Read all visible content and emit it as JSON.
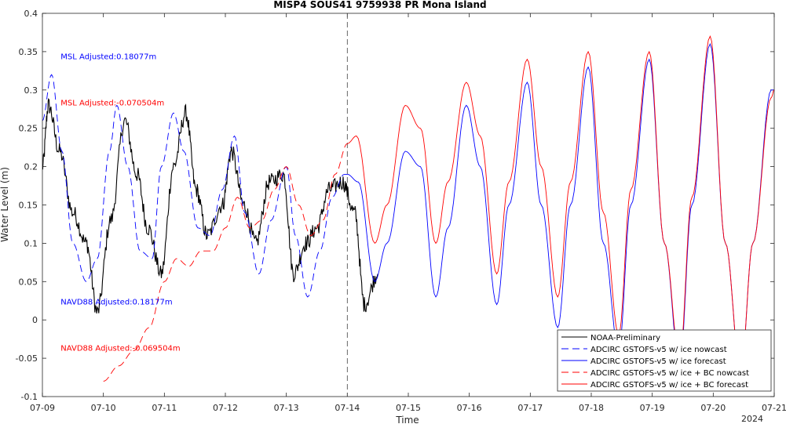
{
  "chart_data": {
    "type": "line",
    "title": "MISP4 SOUS41 9759938 PR Mona Island",
    "xlabel": "Time",
    "ylabel": "Water Level (m)",
    "x_year_label": "2024",
    "xlim": [
      0,
      12
    ],
    "ylim": [
      -0.1,
      0.4
    ],
    "x_ticks": [
      "07-09",
      "07-10",
      "07-11",
      "07-12",
      "07-13",
      "07-14",
      "07-15",
      "07-16",
      "07-17",
      "07-18",
      "07-19",
      "07-20",
      "07-21"
    ],
    "y_ticks": [
      "-0.1",
      "-0.05",
      "0",
      "0.05",
      "0.1",
      "0.15",
      "0.2",
      "0.25",
      "0.3",
      "0.35",
      "0.4"
    ],
    "y_tick_values": [
      -0.1,
      -0.05,
      0,
      0.05,
      0.1,
      0.15,
      0.2,
      0.25,
      0.3,
      0.35,
      0.4
    ],
    "nowcast_forecast_divider": 5,
    "annotations": [
      {
        "text": "MSL Adjusted:0.18077m",
        "x": 0.3,
        "y": 0.34,
        "color": "#0000ff"
      },
      {
        "text": "MSL Adjusted:-0.070504m",
        "x": 0.3,
        "y": 0.28,
        "color": "#ff0000"
      },
      {
        "text": "NAVD88 Adjusted:0.18177m",
        "x": 0.3,
        "y": 0.02,
        "color": "#0000ff"
      },
      {
        "text": "NAVD88 Adjusted:-0.069504m",
        "x": 0.3,
        "y": -0.04,
        "color": "#ff0000"
      }
    ],
    "legend_position": "bottom-right",
    "series": [
      {
        "name": "NOAA-Preliminary",
        "color": "#000000",
        "dash": "solid",
        "noise": true,
        "x": [
          0,
          0.1,
          0.28,
          0.5,
          0.72,
          0.9,
          1.12,
          1.35,
          1.55,
          1.73,
          1.95,
          2.15,
          2.35,
          2.52,
          2.7,
          2.95,
          3.1,
          3.3,
          3.5,
          3.72,
          3.95,
          4.12,
          4.32,
          4.5,
          4.7,
          4.92,
          5.12,
          5.28,
          5.5
        ],
        "y": [
          0.2,
          0.28,
          0.22,
          0.14,
          0.1,
          0.01,
          0.13,
          0.26,
          0.19,
          0.12,
          0.06,
          0.2,
          0.27,
          0.17,
          0.11,
          0.15,
          0.22,
          0.15,
          0.1,
          0.18,
          0.19,
          0.06,
          0.1,
          0.12,
          0.17,
          0.18,
          0.14,
          0.02,
          0.06
        ]
      },
      {
        "name": "ADCIRC GSTOFS-v5 w/ ice nowcast",
        "color": "#0000ff",
        "dash": "dashed",
        "x": [
          0,
          0.15,
          0.32,
          0.5,
          0.72,
          0.9,
          1.1,
          1.22,
          1.4,
          1.6,
          1.8,
          1.95,
          2.15,
          2.32,
          2.55,
          2.75,
          2.95,
          3.15,
          3.32,
          3.55,
          3.75,
          4.0,
          4.15,
          4.35,
          4.55,
          4.75,
          4.95,
          5.0
        ],
        "y": [
          0.26,
          0.32,
          0.22,
          0.1,
          0.05,
          0.08,
          0.22,
          0.28,
          0.2,
          0.09,
          0.08,
          0.2,
          0.27,
          0.22,
          0.12,
          0.11,
          0.17,
          0.24,
          0.14,
          0.06,
          0.13,
          0.2,
          0.11,
          0.03,
          0.09,
          0.16,
          0.19,
          0.19
        ]
      },
      {
        "name": "ADCIRC GSTOFS-v5 w/ ice forecast",
        "color": "#0000ff",
        "dash": "solid",
        "x": [
          5.0,
          5.18,
          5.45,
          5.65,
          5.95,
          6.2,
          6.45,
          6.65,
          6.95,
          7.18,
          7.45,
          7.65,
          7.95,
          8.18,
          8.45,
          8.66,
          8.95,
          9.2,
          9.45,
          9.65,
          9.95,
          10.2,
          10.45,
          10.65,
          10.95,
          11.2,
          11.45,
          11.65,
          11.95,
          12.0
        ],
        "y": [
          0.19,
          0.18,
          0.05,
          0.1,
          0.22,
          0.2,
          0.03,
          0.12,
          0.28,
          0.2,
          0.02,
          0.15,
          0.31,
          0.15,
          -0.01,
          0.15,
          0.33,
          0.1,
          -0.04,
          0.15,
          0.34,
          0.1,
          -0.06,
          0.15,
          0.36,
          0.1,
          -0.07,
          0.1,
          0.3,
          0.3
        ]
      },
      {
        "name": "ADCIRC GSTOFS-v5 w/ ice + BC nowcast",
        "color": "#ff0000",
        "dash": "dashed",
        "x": [
          1.0,
          1.25,
          1.5,
          1.75,
          2.0,
          2.2,
          2.4,
          2.6,
          2.8,
          3.0,
          3.2,
          3.4,
          3.6,
          3.8,
          4.0,
          4.2,
          4.4,
          4.6,
          4.8,
          5.0
        ],
        "y": [
          -0.08,
          -0.06,
          -0.04,
          -0.01,
          0.05,
          0.08,
          0.07,
          0.09,
          0.09,
          0.12,
          0.16,
          0.12,
          0.13,
          0.17,
          0.2,
          0.15,
          0.11,
          0.13,
          0.19,
          0.23
        ]
      },
      {
        "name": "ADCIRC GSTOFS-v5 w/ ice + BC forecast",
        "color": "#ff0000",
        "dash": "solid",
        "x": [
          5.0,
          5.15,
          5.45,
          5.65,
          5.95,
          6.2,
          6.45,
          6.65,
          6.95,
          7.18,
          7.45,
          7.65,
          7.95,
          8.18,
          8.45,
          8.66,
          8.95,
          9.2,
          9.45,
          9.65,
          9.95,
          10.2,
          10.45,
          10.65,
          10.95,
          11.2,
          11.45,
          11.65,
          11.95,
          12.0
        ],
        "y": [
          0.23,
          0.24,
          0.1,
          0.15,
          0.28,
          0.25,
          0.1,
          0.18,
          0.31,
          0.24,
          0.06,
          0.18,
          0.34,
          0.2,
          0.03,
          0.18,
          0.35,
          0.14,
          -0.02,
          0.17,
          0.35,
          0.1,
          -0.05,
          0.16,
          0.37,
          0.1,
          -0.07,
          0.1,
          0.29,
          0.3
        ]
      }
    ]
  }
}
